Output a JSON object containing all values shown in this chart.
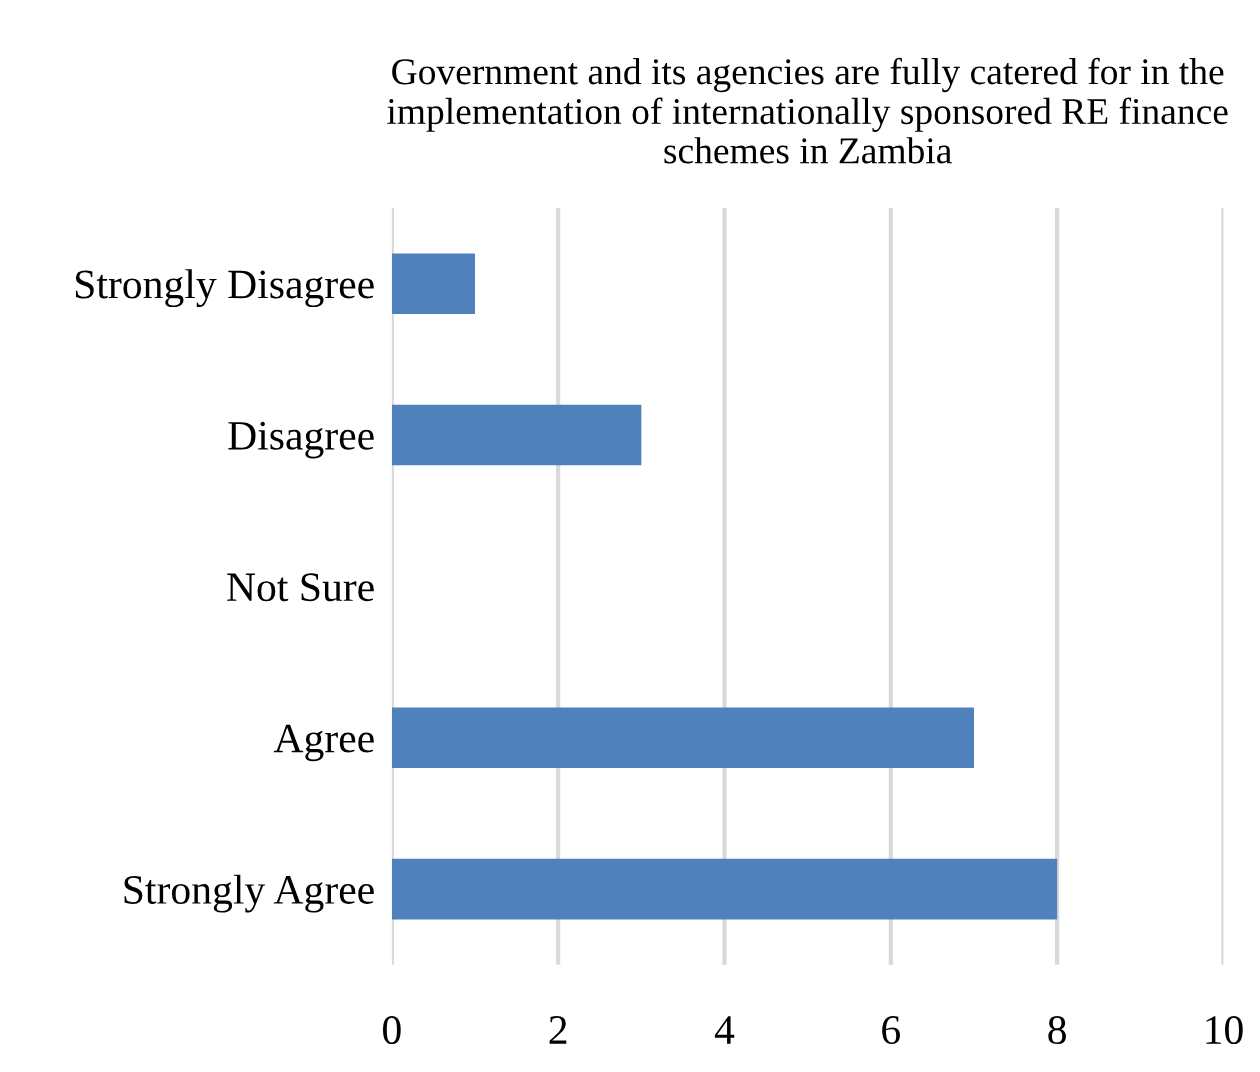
{
  "chart_data": {
    "type": "bar",
    "orientation": "horizontal",
    "title": "Government and its agencies are fully catered for in the implementation of internationally sponsored RE finance schemes in Zambia",
    "categories": [
      "Strongly Disagree",
      "Disagree",
      "Not Sure",
      "Agree",
      "Strongly Agree"
    ],
    "values": [
      1,
      3,
      0,
      7,
      8
    ],
    "color": "#4f81bd",
    "xlim": [
      0,
      10
    ],
    "xticks": [
      0,
      2,
      4,
      6,
      8,
      10
    ],
    "grid": "x"
  }
}
